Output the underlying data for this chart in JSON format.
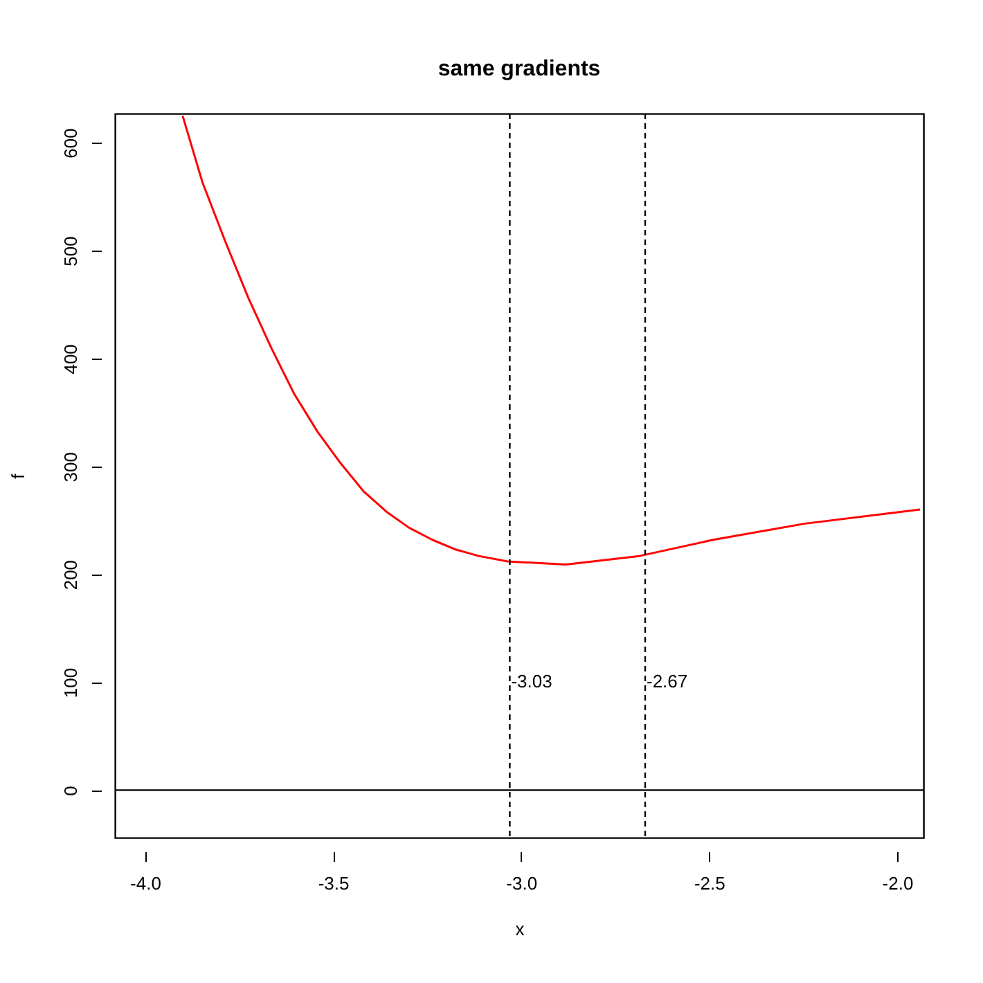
{
  "chart_data": {
    "type": "line",
    "title": "same gradients",
    "xlabel": "x",
    "ylabel": "f",
    "x": [
      -3.9,
      -3.847,
      -3.786,
      -3.725,
      -3.663,
      -3.603,
      -3.541,
      -3.48,
      -3.419,
      -3.358,
      -3.297,
      -3.236,
      -3.174,
      -3.113,
      -3.036,
      -2.881,
      -2.685,
      -2.489,
      -2.245,
      -1.939
    ],
    "series": [
      {
        "color": "#ff0000",
        "values": [
          625,
          563,
          508,
          456,
          409,
          367,
          332,
          303,
          277,
          258,
          243,
          232,
          223,
          217,
          212,
          209,
          217,
          232,
          247,
          260
        ]
      }
    ],
    "xlim": [
      -4.08,
      -1.93
    ],
    "ylim": [
      -44,
      627
    ],
    "xticks": [
      {
        "value": -4,
        "label": "-4.0"
      },
      {
        "value": -3.5,
        "label": "-3.5"
      },
      {
        "value": -3,
        "label": "-3.0"
      },
      {
        "value": -2.5,
        "label": "-2.5"
      },
      {
        "value": -2,
        "label": "-2.0"
      }
    ],
    "yticks": [
      0,
      100,
      200,
      300,
      400,
      500,
      600
    ],
    "ref_lines": [
      {
        "axis": "x",
        "value": -3.03,
        "label": "-3.03",
        "line_style": "dashed"
      },
      {
        "axis": "x",
        "value": -2.67,
        "label": "-2.67",
        "line_style": "dashed"
      },
      {
        "axis": "y",
        "value": 0,
        "line_style": "solid"
      }
    ],
    "grid": false,
    "marker": "none",
    "line_style": "solid"
  }
}
